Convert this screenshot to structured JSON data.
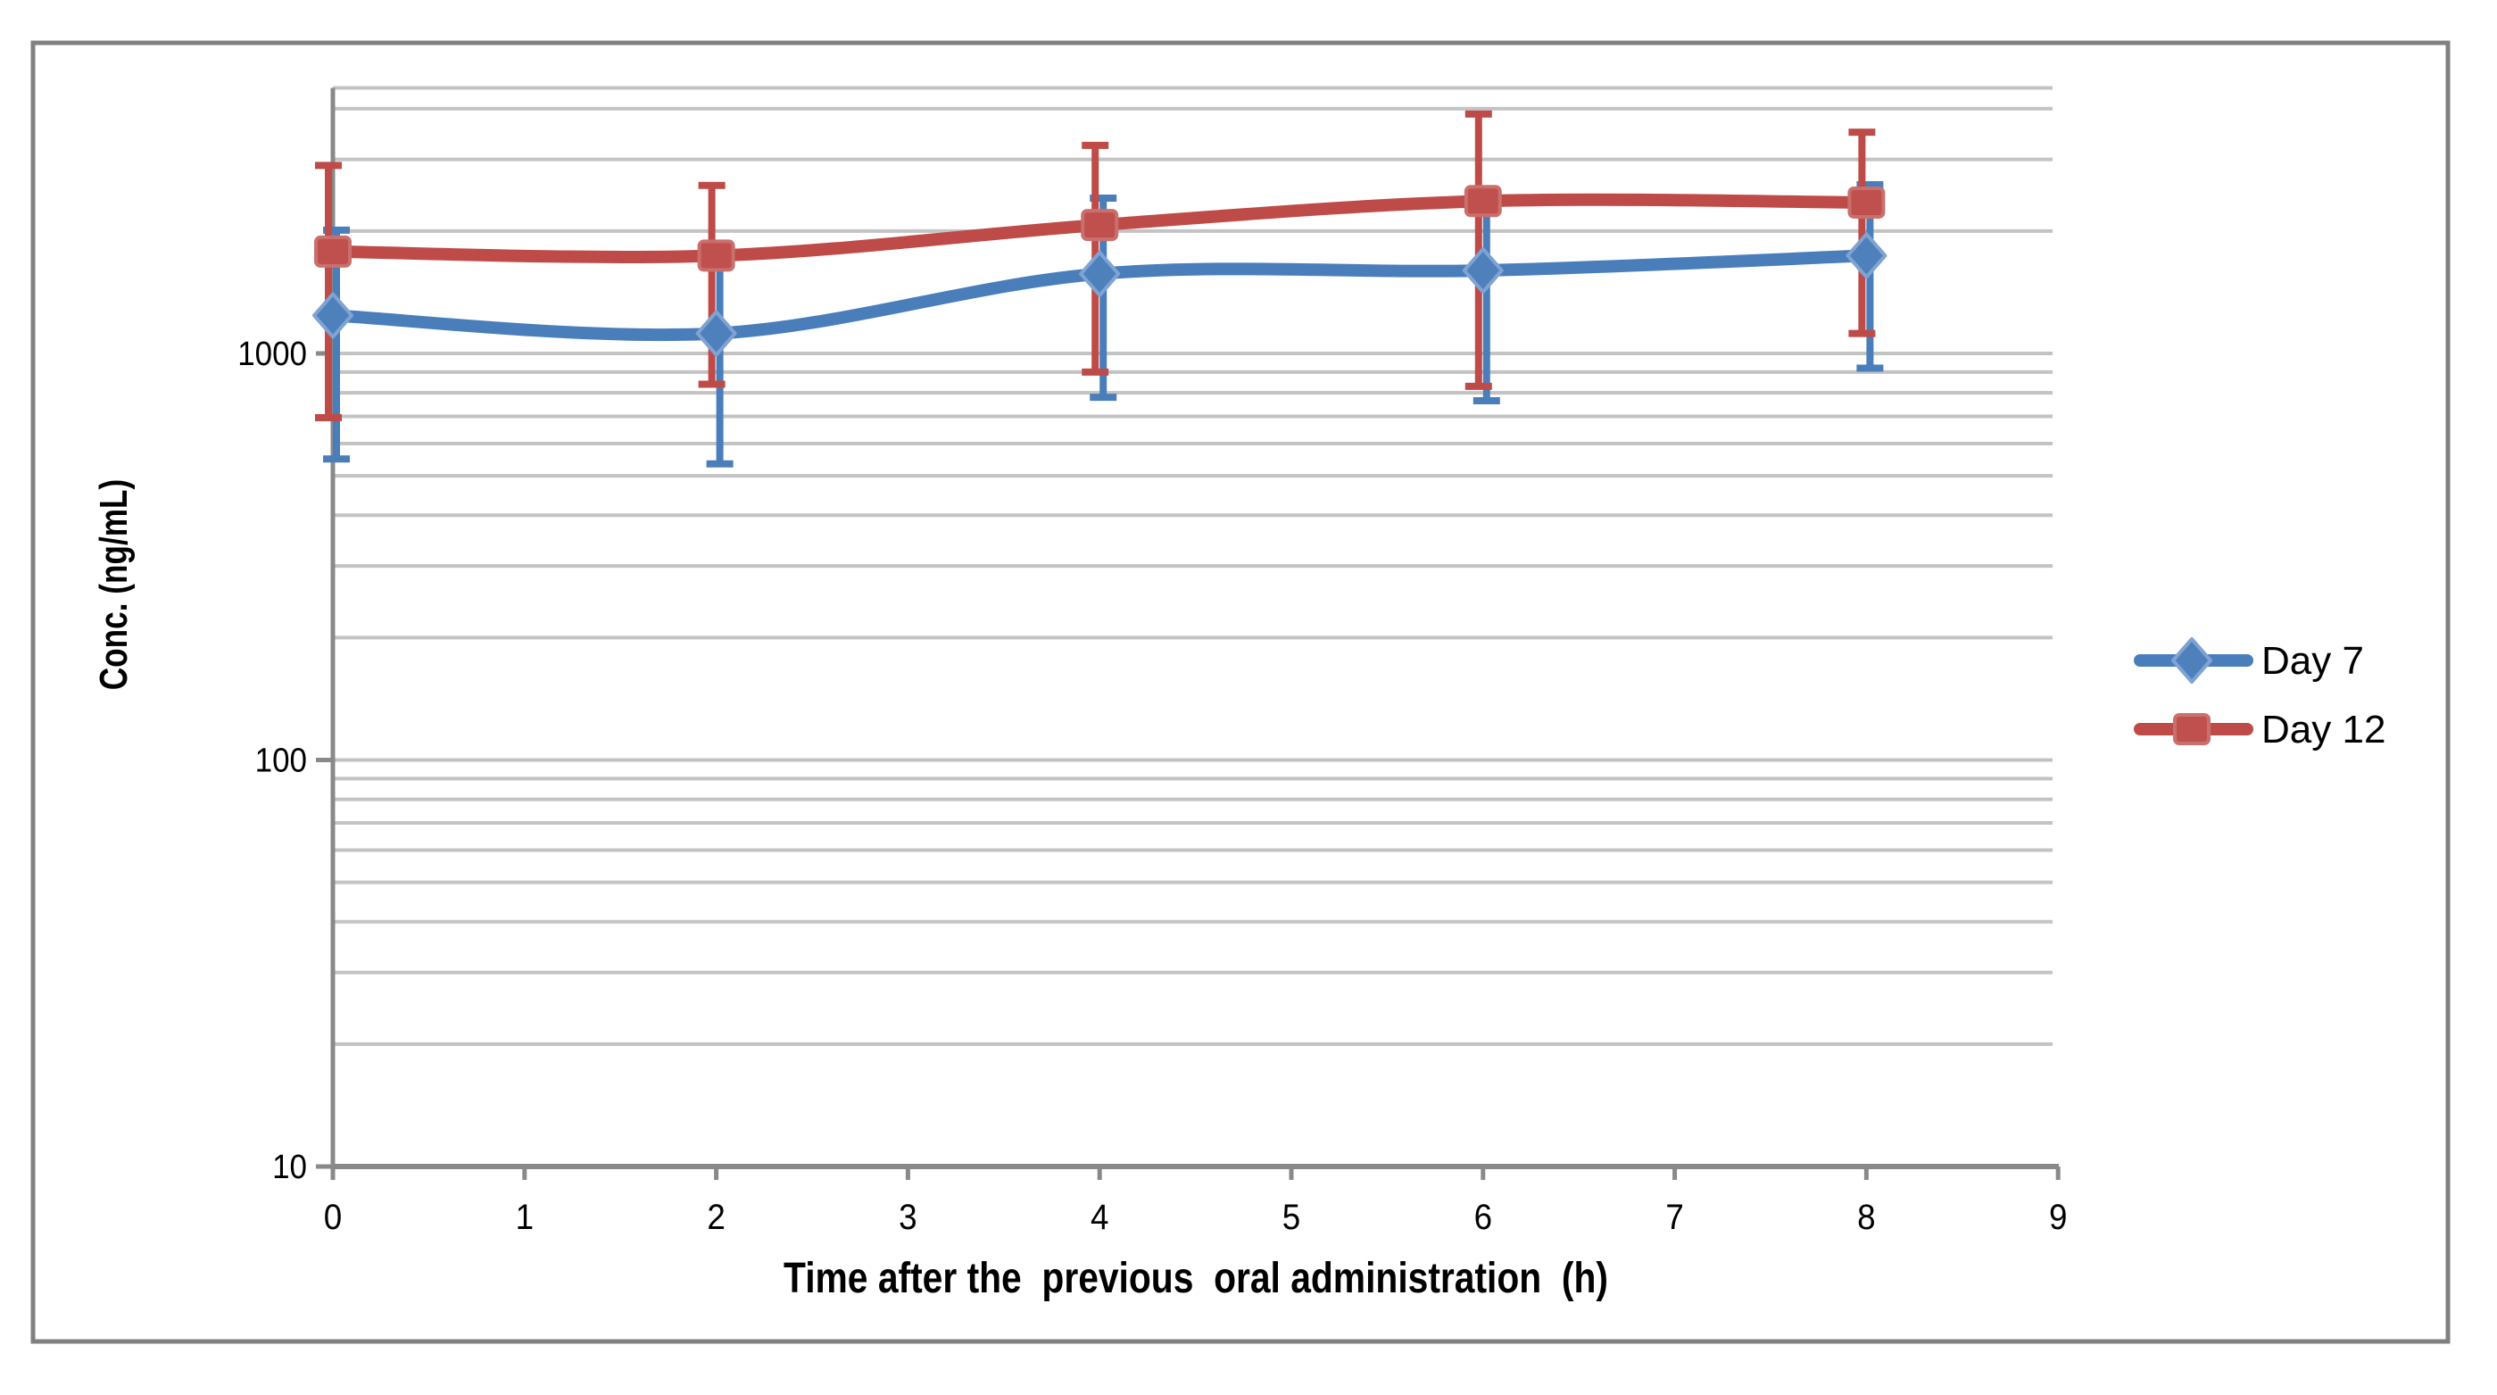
{
  "figure": {
    "background": "#ffffff",
    "border_color": "#808080"
  },
  "chart_data": {
    "type": "line",
    "title": "",
    "xlabel": "Time after the  previous  oral administration  (h)",
    "ylabel": "Conc. (ng/mL)",
    "y_scale": "log",
    "xlim": [
      0,
      9
    ],
    "ylim": [
      10,
      4500
    ],
    "x_tick_labels": [
      "0",
      "1",
      "2",
      "3",
      "4",
      "5",
      "6",
      "7",
      "8",
      "9"
    ],
    "y_tick_labels": [
      "10",
      "100",
      "1000"
    ],
    "y_tick_values": [
      10,
      100,
      1000
    ],
    "grid": "horizontal log minor gridlines on",
    "legend_position": "right middle",
    "x": [
      0,
      2,
      4,
      6,
      8
    ],
    "series": [
      {
        "name": "Day 7",
        "color": "#4A7EBB",
        "marker": "diamond",
        "marker_fill": "#4E80BC",
        "marker_edge": "#7FA3D2",
        "values": [
          1240,
          1120,
          1570,
          1600,
          1740
        ],
        "error_low": [
          550,
          535,
          780,
          765,
          920
        ],
        "error_high": [
          2010,
          1670,
          2410,
          2350,
          2600
        ]
      },
      {
        "name": "Day 12",
        "color": "#BE4B48",
        "marker": "square",
        "marker_fill": "#C0504D",
        "marker_edge": "#C9706D",
        "values": [
          1780,
          1740,
          2070,
          2370,
          2350
        ],
        "error_low": [
          695,
          840,
          900,
          830,
          1120
        ],
        "error_high": [
          2900,
          2590,
          3250,
          3880,
          3500
        ]
      }
    ],
    "gridline_color": "#C3C3C3",
    "axis_color": "#898989"
  },
  "legend": {
    "items": [
      {
        "label": "Day 7"
      },
      {
        "label": "Day 12"
      }
    ]
  }
}
